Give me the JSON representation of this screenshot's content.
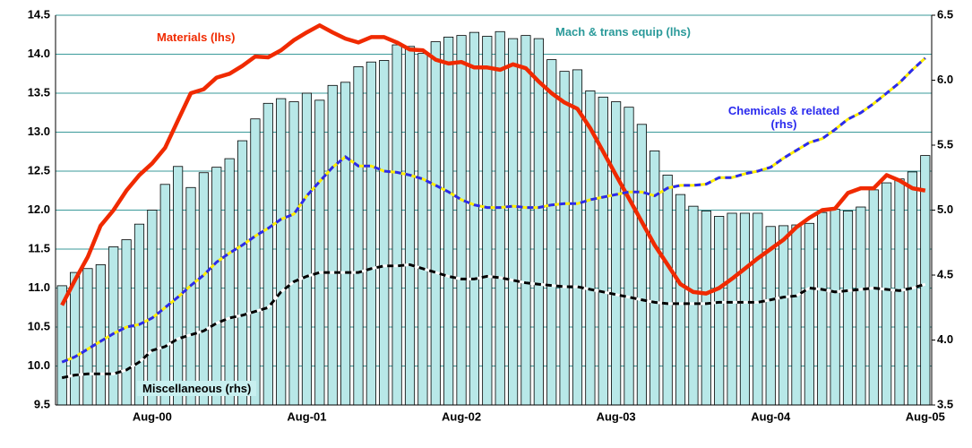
{
  "chart_data": {
    "type": "combo",
    "categories": [
      null,
      null,
      null,
      null,
      null,
      null,
      null,
      "Aug-00",
      null,
      null,
      null,
      null,
      null,
      null,
      null,
      null,
      null,
      null,
      null,
      "Aug-01",
      null,
      null,
      null,
      null,
      null,
      null,
      null,
      null,
      null,
      null,
      null,
      "Aug-02",
      null,
      null,
      null,
      null,
      null,
      null,
      null,
      null,
      null,
      null,
      null,
      "Aug-03",
      null,
      null,
      null,
      null,
      null,
      null,
      null,
      null,
      null,
      null,
      null,
      "Aug-04",
      null,
      null,
      null,
      null,
      null,
      null,
      null,
      null,
      null,
      null,
      null,
      "Aug-05"
    ],
    "ylim": [
      9.5,
      14.5
    ],
    "yticks": [
      9.5,
      10.0,
      10.5,
      11.0,
      11.5,
      12.0,
      12.5,
      13.0,
      13.5,
      14.0,
      14.5
    ],
    "y2lim": [
      3.5,
      6.5
    ],
    "y2ticks": [
      3.5,
      4.0,
      4.5,
      5.0,
      5.5,
      6.0,
      6.5
    ],
    "grid": true,
    "series": [
      {
        "name": "Mach & trans equip (lhs)",
        "type": "bar",
        "color": "#b8e8e8",
        "values": [
          11.03,
          11.2,
          11.25,
          11.3,
          11.53,
          11.62,
          11.82,
          12.0,
          12.33,
          12.56,
          12.29,
          12.48,
          12.55,
          12.66,
          12.89,
          13.17,
          13.37,
          13.43,
          13.39,
          13.5,
          13.41,
          13.6,
          13.64,
          13.84,
          13.9,
          13.92,
          14.12,
          14.1,
          14.01,
          14.16,
          14.22,
          14.24,
          14.28,
          14.23,
          14.29,
          14.2,
          14.24,
          14.2,
          13.93,
          13.78,
          13.8,
          13.53,
          13.45,
          13.39,
          13.32,
          13.1,
          12.76,
          12.45,
          12.2,
          12.05,
          11.99,
          11.92,
          11.96,
          11.96,
          11.96,
          11.79,
          11.8,
          11.81,
          11.83,
          11.97,
          12.01,
          11.99,
          12.04,
          12.26,
          12.35,
          12.4,
          12.49,
          12.7
        ]
      },
      {
        "name": "Materials (lhs)",
        "type": "line",
        "color": "#f02a00",
        "values": [
          10.78,
          11.1,
          11.4,
          11.8,
          12.0,
          12.25,
          12.45,
          12.6,
          12.8,
          13.15,
          13.5,
          13.55,
          13.7,
          13.75,
          13.85,
          13.97,
          13.96,
          14.05,
          14.18,
          14.28,
          14.37,
          14.28,
          14.2,
          14.15,
          14.22,
          14.22,
          14.15,
          14.06,
          14.05,
          13.93,
          13.88,
          13.9,
          13.83,
          13.83,
          13.8,
          13.87,
          13.82,
          13.65,
          13.5,
          13.38,
          13.3,
          13.05,
          12.75,
          12.45,
          12.15,
          11.85,
          11.55,
          11.3,
          11.05,
          10.95,
          10.93,
          11.0,
          11.12,
          11.25,
          11.38,
          11.5,
          11.62,
          11.78,
          11.9,
          12.0,
          12.02,
          12.22,
          12.28,
          12.28,
          12.45,
          12.38,
          12.28,
          12.25
        ]
      },
      {
        "name": "Chemicals & related (rhs)",
        "type": "line",
        "axis": "y2",
        "color": "#2a2aee",
        "values": [
          3.83,
          3.87,
          3.93,
          3.99,
          4.05,
          4.1,
          4.12,
          4.17,
          4.25,
          4.33,
          4.42,
          4.5,
          4.6,
          4.67,
          4.73,
          4.8,
          4.86,
          4.93,
          4.97,
          5.11,
          5.22,
          5.33,
          5.41,
          5.34,
          5.34,
          5.3,
          5.29,
          5.27,
          5.24,
          5.19,
          5.14,
          5.08,
          5.04,
          5.02,
          5.02,
          5.03,
          5.02,
          5.02,
          5.04,
          5.05,
          5.05,
          5.08,
          5.1,
          5.12,
          5.14,
          5.14,
          5.11,
          5.17,
          5.19,
          5.19,
          5.2,
          5.25,
          5.25,
          5.28,
          5.3,
          5.33,
          5.4,
          5.46,
          5.52,
          5.55,
          5.62,
          5.7,
          5.75,
          5.82,
          5.9,
          5.98,
          6.08,
          6.17
        ]
      },
      {
        "name": "Miscellaneous (rhs)",
        "type": "line",
        "axis": "y2",
        "color": "#000000",
        "values": [
          3.71,
          3.73,
          3.74,
          3.74,
          3.74,
          3.77,
          3.83,
          3.92,
          3.95,
          4.01,
          4.04,
          4.07,
          4.13,
          4.17,
          4.19,
          4.22,
          4.25,
          4.37,
          4.45,
          4.49,
          4.52,
          4.52,
          4.52,
          4.52,
          4.55,
          4.57,
          4.57,
          4.58,
          4.55,
          4.52,
          4.49,
          4.47,
          4.47,
          4.49,
          4.48,
          4.46,
          4.44,
          4.43,
          4.42,
          4.41,
          4.41,
          4.39,
          4.37,
          4.35,
          4.33,
          4.31,
          4.29,
          4.28,
          4.28,
          4.28,
          4.28,
          4.29,
          4.29,
          4.29,
          4.29,
          4.31,
          4.33,
          4.34,
          4.4,
          4.39,
          4.37,
          4.38,
          4.39,
          4.4,
          4.39,
          4.38,
          4.4,
          4.43
        ]
      }
    ]
  }
}
